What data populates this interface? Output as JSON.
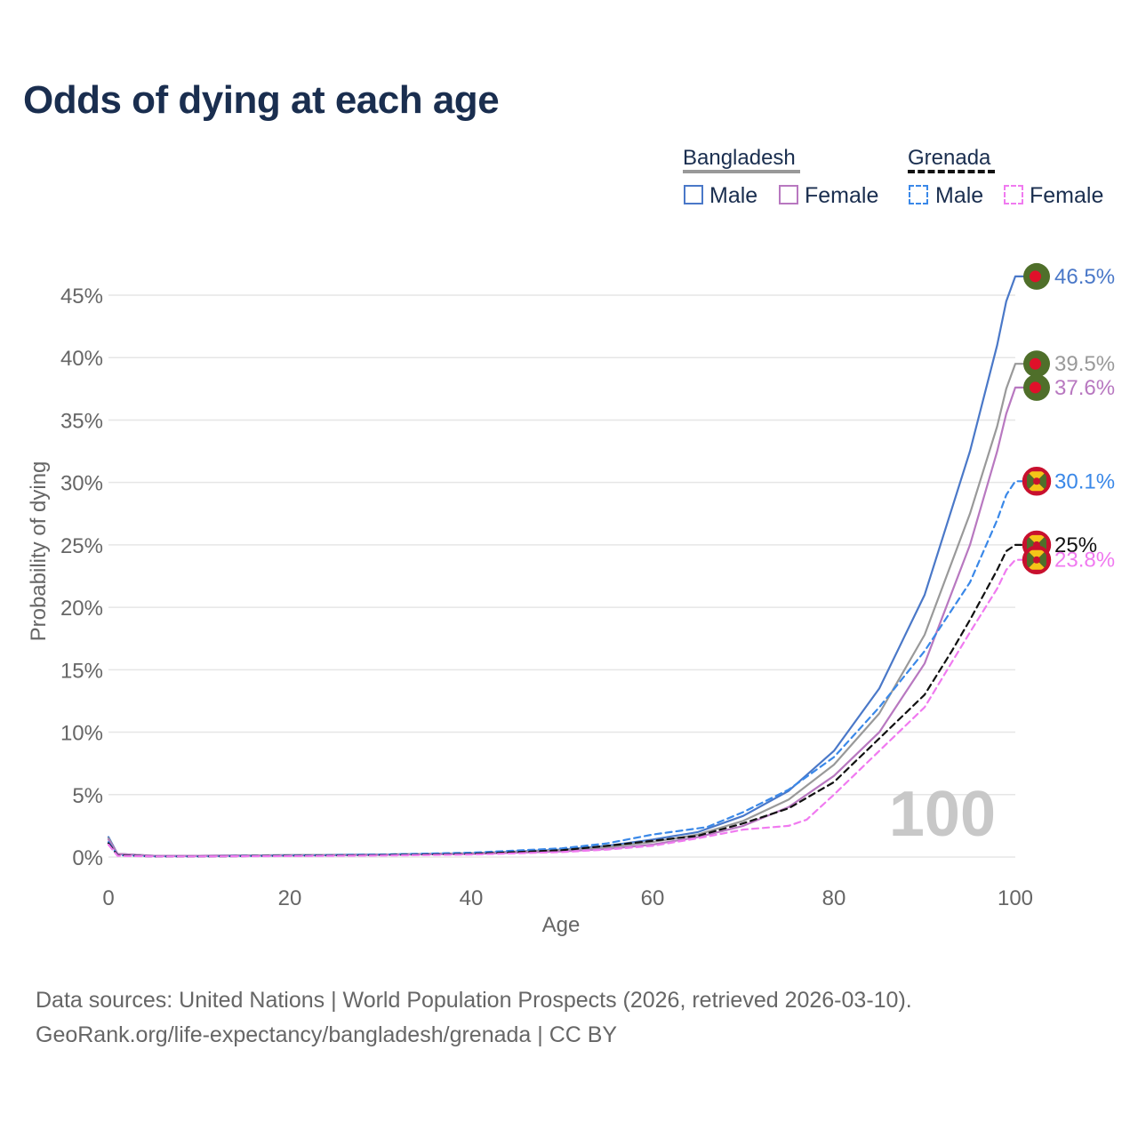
{
  "chart_data": {
    "type": "line",
    "title": "Odds of dying at each age",
    "xlabel": "Age",
    "ylabel": "Probability of dying",
    "xlim": [
      0,
      100
    ],
    "ylim": [
      0,
      45
    ],
    "x_ticks": [
      "0",
      "20",
      "40",
      "60",
      "80",
      "100"
    ],
    "x_tick_values": [
      0,
      20,
      40,
      60,
      80,
      100
    ],
    "y_ticks": [
      "0%",
      "5%",
      "10%",
      "15%",
      "20%",
      "25%",
      "30%",
      "35%",
      "40%",
      "45%"
    ],
    "y_tick_values": [
      0,
      5,
      10,
      15,
      20,
      25,
      30,
      35,
      40,
      45
    ],
    "grid": true,
    "watermark": "100",
    "legend": {
      "groups": [
        {
          "country": "Bangladesh",
          "items": [
            "Male",
            "Female"
          ]
        },
        {
          "country": "Grenada",
          "items": [
            "Male",
            "Female"
          ]
        }
      ]
    },
    "series": [
      {
        "name": "Bangladesh Male",
        "country": "Bangladesh",
        "sex": "Male",
        "color": "#4a78c8",
        "dashed": false,
        "end_label": "46.5%",
        "x": [
          0,
          1,
          5,
          10,
          20,
          30,
          40,
          50,
          55,
          60,
          65,
          70,
          75,
          80,
          85,
          90,
          95,
          98,
          99
        ],
        "values": [
          1.6,
          0.25,
          0.1,
          0.1,
          0.15,
          0.2,
          0.3,
          0.6,
          0.9,
          1.4,
          2.0,
          3.3,
          5.3,
          8.5,
          13.5,
          21.0,
          32.5,
          41.0,
          44.5
        ]
      },
      {
        "name": "Bangladesh Both",
        "country": "Bangladesh",
        "sex": "Both",
        "color": "#999999",
        "dashed": false,
        "end_label": "39.5%",
        "x": [
          0,
          1,
          5,
          10,
          20,
          30,
          40,
          50,
          55,
          60,
          65,
          70,
          75,
          80,
          85,
          90,
          95,
          98,
          99
        ],
        "values": [
          1.5,
          0.25,
          0.1,
          0.1,
          0.15,
          0.2,
          0.3,
          0.55,
          0.8,
          1.2,
          1.8,
          2.9,
          4.6,
          7.4,
          11.5,
          17.8,
          27.5,
          34.5,
          37.5
        ]
      },
      {
        "name": "Bangladesh Female",
        "country": "Bangladesh",
        "sex": "Female",
        "color": "#b878c0",
        "dashed": false,
        "end_label": "37.6%",
        "x": [
          0,
          1,
          5,
          10,
          20,
          30,
          40,
          50,
          55,
          60,
          65,
          70,
          75,
          80,
          85,
          90,
          95,
          98,
          99
        ],
        "values": [
          1.4,
          0.25,
          0.1,
          0.1,
          0.12,
          0.18,
          0.25,
          0.45,
          0.65,
          1.0,
          1.6,
          2.5,
          4.0,
          6.5,
          10.0,
          15.5,
          25.0,
          32.5,
          35.5
        ]
      },
      {
        "name": "Grenada Male",
        "country": "Grenada",
        "sex": "Male",
        "color": "#3a88e8",
        "dashed": true,
        "end_label": "30.1%",
        "x": [
          0,
          1,
          5,
          10,
          20,
          30,
          40,
          50,
          55,
          60,
          62,
          66,
          70,
          75,
          80,
          85,
          90,
          95,
          98,
          99
        ],
        "values": [
          1.2,
          0.15,
          0.05,
          0.05,
          0.12,
          0.2,
          0.35,
          0.7,
          1.1,
          1.8,
          2.0,
          2.4,
          3.6,
          5.4,
          8.0,
          12.0,
          16.5,
          22.0,
          27.0,
          29.0
        ]
      },
      {
        "name": "Grenada Both",
        "country": "Grenada",
        "sex": "Both",
        "color": "#111111",
        "dashed": true,
        "end_label": "25%",
        "x": [
          0,
          1,
          5,
          10,
          20,
          30,
          40,
          50,
          55,
          60,
          65,
          70,
          75,
          80,
          85,
          90,
          93,
          95,
          98,
          99
        ],
        "values": [
          1.1,
          0.15,
          0.05,
          0.05,
          0.1,
          0.15,
          0.25,
          0.55,
          0.9,
          1.3,
          1.7,
          2.7,
          3.9,
          6.0,
          9.5,
          13.0,
          16.5,
          19.0,
          23.0,
          24.5
        ]
      },
      {
        "name": "Grenada Female",
        "country": "Grenada",
        "sex": "Female",
        "color": "#f07af0",
        "dashed": true,
        "end_label": "23.8%",
        "x": [
          0,
          1,
          5,
          10,
          20,
          30,
          40,
          50,
          55,
          60,
          65,
          70,
          75,
          77,
          80,
          85,
          90,
          95,
          98,
          99
        ],
        "values": [
          1.0,
          0.1,
          0.05,
          0.05,
          0.08,
          0.12,
          0.2,
          0.4,
          0.6,
          0.9,
          1.5,
          2.2,
          2.5,
          3.0,
          5.0,
          8.5,
          12.0,
          18.0,
          21.5,
          23.0
        ]
      }
    ],
    "end_markers": [
      {
        "series": "Bangladesh Male",
        "flag": "bangladesh-flag",
        "value": 46.5
      },
      {
        "series": "Bangladesh Both",
        "flag": "bangladesh-flag",
        "value": 39.5
      },
      {
        "series": "Bangladesh Female",
        "flag": "bangladesh-flag",
        "value": 37.6
      },
      {
        "series": "Grenada Male",
        "flag": "grenada-flag",
        "value": 30.1
      },
      {
        "series": "Grenada Both",
        "flag": "grenada-flag",
        "value": 25.0
      },
      {
        "series": "Grenada Female",
        "flag": "grenada-flag",
        "value": 23.8
      }
    ]
  },
  "footer": {
    "line1": "Data sources: United Nations | World Population Prospects (2026, retrieved 2026-03-10).",
    "line2": "GeoRank.org/life-expectancy/bangladesh/grenada | CC BY"
  },
  "colors": {
    "title": "#1a2e4f",
    "axis_text": "#666666",
    "grid": "#e6e6e6",
    "watermark": "#c8c8c8",
    "bangladesh_green": "#4f6f2a",
    "bangladesh_red": "#e0102a",
    "grenada_red": "#c8102e",
    "grenada_yellow": "#f5c518",
    "grenada_green": "#4f6f2a"
  }
}
